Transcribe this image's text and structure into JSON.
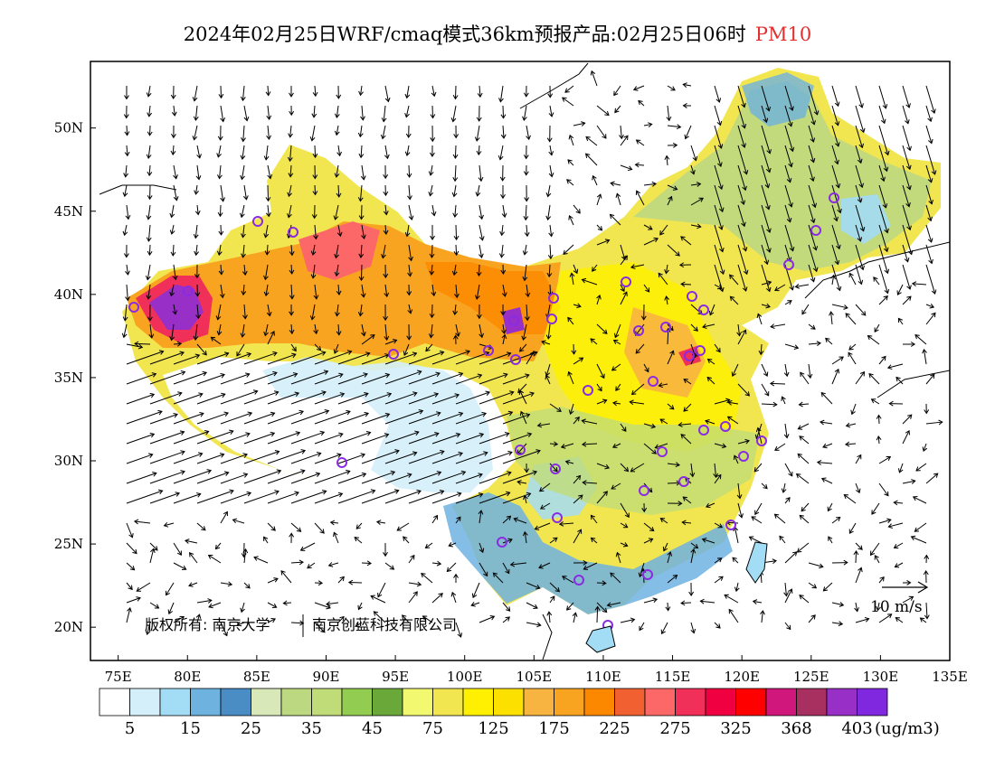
{
  "title": {
    "main": "2024年02月25日WRF/cmaq模式36km预报产品:02月25日06时",
    "variable": "PM10"
  },
  "axes": {
    "lon_ticks": [
      "75E",
      "80E",
      "85E",
      "90E",
      "95E",
      "100E",
      "105E",
      "110E",
      "115E",
      "120E",
      "125E",
      "130E",
      "135E"
    ],
    "lat_ticks": [
      "50N",
      "45N",
      "40N",
      "35N",
      "30N",
      "25N",
      "20N"
    ]
  },
  "copyright": {
    "left": "版权所有: 南京大学",
    "right": "南京创蓝科技有限公司"
  },
  "wind_scale": {
    "label": "10 m/s"
  },
  "colorbar": {
    "colors": [
      "#ffffff",
      "#d4eefa",
      "#a3dcf5",
      "#6eb2e0",
      "#4a8cc4",
      "#d8e8b8",
      "#bcd880",
      "#c0dc78",
      "#92cc50",
      "#6aa83a",
      "#f2f870",
      "#f2e650",
      "#fef000",
      "#fce000",
      "#f8b440",
      "#f8a420",
      "#fc8800",
      "#f06030",
      "#fc6868",
      "#f03058",
      "#f00040",
      "#fe0000",
      "#d0187c",
      "#a83060",
      "#9830c8",
      "#8028e0"
    ],
    "labels": [
      "5",
      "15",
      "25",
      "35",
      "45",
      "75",
      "125",
      "175",
      "225",
      "275",
      "325",
      "368",
      "403"
    ],
    "units": "(ug/m3)"
  },
  "legend_values": {
    "lon_range": [
      73,
      135
    ],
    "lat_range": [
      18,
      54
    ]
  }
}
